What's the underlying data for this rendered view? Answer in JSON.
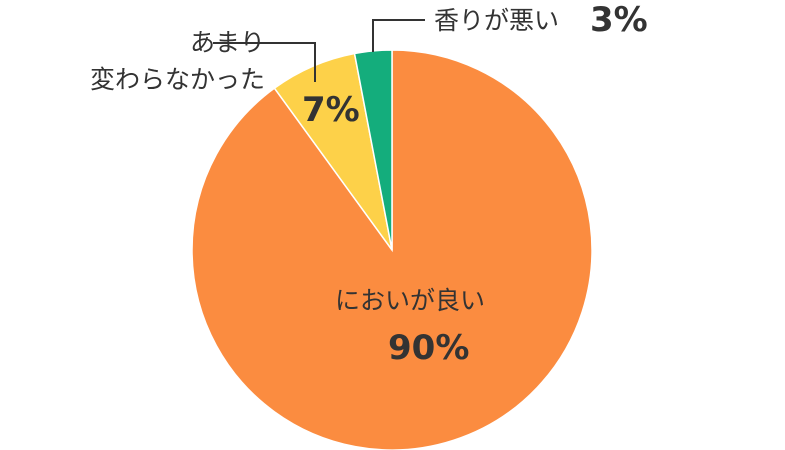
{
  "chart_data": {
    "type": "pie",
    "categories": [
      "においが良い",
      "あまり\n変わらなかった",
      "香りが悪い"
    ],
    "values": [
      90,
      7,
      3
    ],
    "value_labels": [
      "90%",
      "7%",
      "3%"
    ],
    "colors": [
      "#fb8c40",
      "#fdd149",
      "#14ad7c"
    ]
  }
}
